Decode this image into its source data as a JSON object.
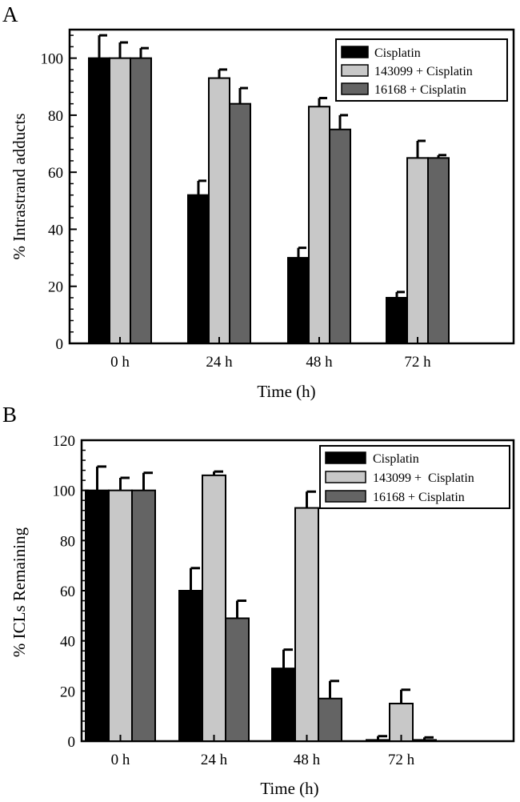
{
  "chart_data": [
    {
      "panel": "A",
      "type": "bar",
      "categories": [
        "0 h",
        "24 h",
        "48 h",
        "72 h"
      ],
      "xlabel": "Time (h)",
      "ylabel": "% Intrastrand adducts",
      "ylim": [
        0,
        110
      ],
      "yticks": [
        0,
        20,
        40,
        60,
        80,
        100
      ],
      "legend_position": "top-right",
      "series": [
        {
          "name": "Cisplatin",
          "color": "#000000",
          "values": [
            100,
            52,
            30,
            16
          ],
          "errors": [
            8,
            5,
            3.5,
            2
          ]
        },
        {
          "name": "143099 + Cisplatin",
          "color": "#c8c8c8",
          "values": [
            100,
            93,
            83,
            65
          ],
          "errors": [
            5.5,
            3,
            3,
            6
          ]
        },
        {
          "name": "16168 + Cisplatin",
          "color": "#646464",
          "values": [
            100,
            84,
            75,
            65
          ],
          "errors": [
            3.5,
            5.5,
            5,
            1
          ]
        }
      ]
    },
    {
      "panel": "B",
      "type": "bar",
      "categories": [
        "0 h",
        "24 h",
        "48 h",
        "72 h"
      ],
      "xlabel": "Time (h)",
      "ylabel": "% ICLs Remaining",
      "ylim": [
        0,
        120
      ],
      "yticks": [
        0,
        20,
        40,
        60,
        80,
        100,
        120
      ],
      "legend_position": "top-right",
      "series": [
        {
          "name": "Cisplatin",
          "color": "#000000",
          "values": [
            100,
            60,
            29,
            0.5
          ],
          "errors": [
            9.5,
            9,
            7.5,
            1.5
          ]
        },
        {
          "name": "143099 +  Cisplatin",
          "color": "#c8c8c8",
          "values": [
            100,
            106,
            93,
            15
          ],
          "errors": [
            5,
            1.5,
            6.5,
            5.5
          ]
        },
        {
          "name": "16168 + Cisplatin",
          "color": "#646464",
          "values": [
            100,
            49,
            17,
            0.5
          ],
          "errors": [
            7,
            7,
            7,
            1
          ]
        }
      ]
    }
  ]
}
